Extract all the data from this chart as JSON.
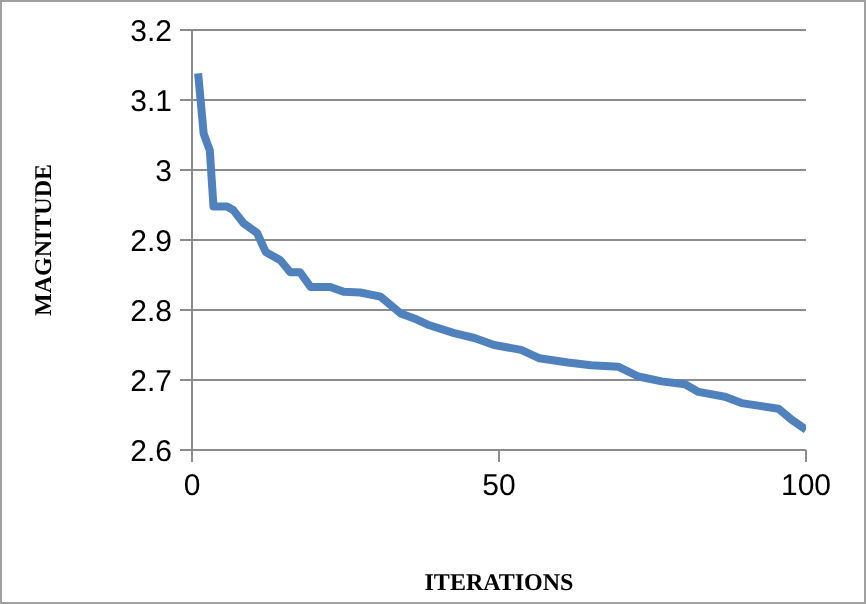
{
  "chart_data": {
    "type": "line",
    "xlabel": "ITERATIONS",
    "ylabel": "MAGNITUDE",
    "x": [
      1,
      1.9,
      2.9,
      3.5,
      5.7,
      6.7,
      8.4,
      10.6,
      12,
      14.4,
      16,
      17.6,
      19.3,
      22.5,
      24.7,
      27.4,
      30.7,
      34,
      36.2,
      38.4,
      42.7,
      46,
      49.2,
      53.6,
      56.6,
      61.2,
      65,
      69.4,
      72.7,
      76.5,
      80.3,
      82.5,
      86.8,
      89.5,
      95.5,
      97.7,
      100
    ],
    "series": [
      {
        "color": "#4f81bd",
        "values": [
          3.138,
          3.052,
          3.028,
          2.948,
          2.948,
          2.943,
          2.924,
          2.91,
          2.883,
          2.871,
          2.854,
          2.854,
          2.833,
          2.833,
          2.826,
          2.825,
          2.819,
          2.795,
          2.788,
          2.779,
          2.767,
          2.76,
          2.75,
          2.743,
          2.731,
          2.725,
          2.721,
          2.719,
          2.705,
          2.698,
          2.694,
          2.683,
          2.676,
          2.667,
          2.659,
          2.643,
          2.629
        ]
      }
    ],
    "xlim": [
      0,
      100
    ],
    "xticks": [
      0,
      50,
      100
    ],
    "ylim": [
      2.6,
      3.2
    ],
    "yticks": [
      2.6,
      2.7,
      2.8,
      2.9,
      3,
      3.1,
      3.2
    ],
    "grid": "y",
    "legend": false,
    "marker": "none",
    "line_style": "solid"
  }
}
